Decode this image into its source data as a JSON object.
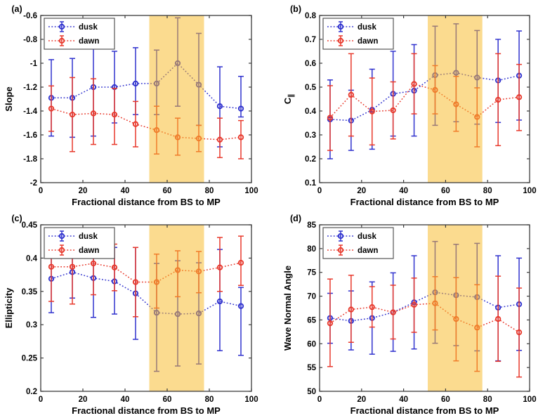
{
  "colors": {
    "dusk": "#3032CE",
    "dawn": "#E8392C",
    "band_overlay": "rgba(247,186,40,0.52)",
    "axis": "#3b3b3b",
    "text": "#000000",
    "legend_border": "#555555"
  },
  "legend": {
    "items": [
      "dusk",
      "dawn"
    ]
  },
  "xlabel_shared": "Fractional distance from BS to MP",
  "chart_data": [
    {
      "id": "a",
      "panel_label": "(a)",
      "type": "line",
      "subtype": "errorbar",
      "xlabel": "Fractional distance from BS to MP",
      "ylabel": "Slope",
      "xlim": [
        0,
        100
      ],
      "ylim": [
        -2,
        -0.6
      ],
      "xticks": [
        0,
        20,
        40,
        60,
        80,
        100
      ],
      "xtick_labels": [
        "0",
        "20",
        "40",
        "60",
        "80",
        "100"
      ],
      "yticks": [
        -2,
        -1.8,
        -1.6,
        -1.4,
        -1.2,
        -1,
        -0.8,
        -0.6
      ],
      "ytick_labels": [
        "-2",
        "-1.8",
        "-1.6",
        "-1.4",
        "-1.2",
        "-1",
        "-0.8",
        "-0.6"
      ],
      "band_x": [
        51.5,
        77.5
      ],
      "legend": [
        "dusk",
        "dawn"
      ],
      "x": [
        5,
        15,
        25,
        35,
        45,
        55,
        65,
        75,
        85,
        95
      ],
      "series": [
        {
          "name": "dusk",
          "y": [
            -1.29,
            -1.29,
            -1.2,
            -1.2,
            -1.17,
            -1.17,
            -1.0,
            -1.18,
            -1.36,
            -1.38
          ],
          "err_lo": [
            -1.61,
            -1.62,
            -1.61,
            -1.5,
            -1.43,
            -1.43,
            -1.36,
            -1.52,
            -1.7,
            -1.45
          ],
          "err_hi": [
            -0.97,
            -0.96,
            -0.79,
            -0.9,
            -0.87,
            -0.89,
            -0.62,
            -0.75,
            -1.03,
            -1.11
          ]
        },
        {
          "name": "dawn",
          "y": [
            -1.38,
            -1.43,
            -1.42,
            -1.43,
            -1.51,
            -1.56,
            -1.62,
            -1.63,
            -1.64,
            -1.62
          ],
          "err_lo": [
            -1.57,
            -1.74,
            -1.68,
            -1.68,
            -1.7,
            -1.76,
            -1.77,
            -1.74,
            -1.79,
            -1.8
          ],
          "err_hi": [
            -1.19,
            -1.12,
            -1.13,
            -1.21,
            -1.32,
            -1.36,
            -1.46,
            -1.52,
            -1.46,
            -1.48
          ]
        }
      ]
    },
    {
      "id": "b",
      "panel_label": "(b)",
      "type": "line",
      "subtype": "errorbar",
      "xlabel": "Fractional distance from BS to MP",
      "ylabel": "C",
      "ylabel_sub": "∥",
      "xlim": [
        0,
        100
      ],
      "ylim": [
        0.1,
        0.8
      ],
      "xticks": [
        0,
        20,
        40,
        60,
        80,
        100
      ],
      "xtick_labels": [
        "0",
        "20",
        "40",
        "60",
        "80",
        "100"
      ],
      "yticks": [
        0.1,
        0.2,
        0.3,
        0.4,
        0.5,
        0.6,
        0.7,
        0.8
      ],
      "ytick_labels": [
        "0.1",
        "0.2",
        "0.3",
        "0.4",
        "0.5",
        "0.6",
        "0.7",
        "0.8"
      ],
      "band_x": [
        51.5,
        77.5
      ],
      "legend": [
        "dusk",
        "dawn"
      ],
      "x": [
        5,
        15,
        25,
        35,
        45,
        55,
        65,
        75,
        85,
        95
      ],
      "series": [
        {
          "name": "dusk",
          "y": [
            0.365,
            0.36,
            0.405,
            0.472,
            0.485,
            0.55,
            0.56,
            0.54,
            0.528,
            0.548
          ],
          "err_lo": [
            0.2,
            0.235,
            0.24,
            0.295,
            0.295,
            0.34,
            0.355,
            0.345,
            0.352,
            0.362
          ],
          "err_hi": [
            0.53,
            0.487,
            0.575,
            0.65,
            0.678,
            0.755,
            0.765,
            0.737,
            0.7,
            0.735
          ]
        },
        {
          "name": "dawn",
          "y": [
            0.372,
            0.468,
            0.398,
            0.403,
            0.513,
            0.488,
            0.428,
            0.375,
            0.447,
            0.458
          ],
          "err_lo": [
            0.235,
            0.295,
            0.258,
            0.283,
            0.388,
            0.388,
            0.315,
            0.25,
            0.255,
            0.318
          ],
          "err_hi": [
            0.506,
            0.64,
            0.538,
            0.522,
            0.64,
            0.59,
            0.545,
            0.497,
            0.64,
            0.595
          ]
        }
      ]
    },
    {
      "id": "c",
      "panel_label": "(c)",
      "type": "line",
      "subtype": "errorbar",
      "xlabel": "Fractional distance from BS to MP",
      "ylabel": "Ellipticity",
      "xlim": [
        0,
        100
      ],
      "ylim": [
        0.2,
        0.45
      ],
      "xticks": [
        0,
        20,
        40,
        60,
        80,
        100
      ],
      "xtick_labels": [
        "0",
        "20",
        "40",
        "60",
        "80",
        "100"
      ],
      "yticks": [
        0.2,
        0.25,
        0.3,
        0.35,
        0.4,
        0.45
      ],
      "ytick_labels": [
        "0.2",
        "0.25",
        "0.3",
        "0.35",
        "0.4",
        "0.45"
      ],
      "band_x": [
        51.5,
        77.5
      ],
      "legend": [
        "dusk",
        "dawn"
      ],
      "x": [
        5,
        15,
        25,
        35,
        45,
        55,
        65,
        75,
        85,
        95
      ],
      "series": [
        {
          "name": "dusk",
          "y": [
            0.369,
            0.379,
            0.37,
            0.365,
            0.347,
            0.318,
            0.316,
            0.317,
            0.335,
            0.328
          ],
          "err_lo": [
            0.318,
            0.34,
            0.311,
            0.316,
            0.278,
            0.23,
            0.238,
            0.241,
            0.261,
            0.254
          ],
          "err_hi": [
            0.42,
            0.42,
            0.43,
            0.416,
            0.416,
            0.392,
            0.396,
            0.393,
            0.413,
            0.356
          ]
        },
        {
          "name": "dawn",
          "y": [
            0.387,
            0.387,
            0.392,
            0.386,
            0.364,
            0.364,
            0.382,
            0.38,
            0.386,
            0.393
          ],
          "err_lo": [
            0.335,
            0.331,
            0.345,
            0.351,
            0.312,
            0.325,
            0.342,
            0.348,
            0.35,
            0.359
          ],
          "err_hi": [
            0.44,
            0.445,
            0.439,
            0.421,
            0.416,
            0.406,
            0.411,
            0.41,
            0.431,
            0.433
          ]
        }
      ]
    },
    {
      "id": "d",
      "panel_label": "(d)",
      "type": "line",
      "subtype": "errorbar",
      "xlabel": "Fractional distance from BS to MP",
      "ylabel": "Wave Normal Angle",
      "xlim": [
        0,
        100
      ],
      "ylim": [
        50,
        85
      ],
      "xticks": [
        0,
        20,
        40,
        60,
        80,
        100
      ],
      "xtick_labels": [
        "0",
        "20",
        "40",
        "60",
        "80",
        "100"
      ],
      "yticks": [
        50,
        55,
        60,
        65,
        70,
        75,
        80,
        85
      ],
      "ytick_labels": [
        "50",
        "55",
        "60",
        "65",
        "70",
        "75",
        "80",
        "85"
      ],
      "band_x": [
        51.5,
        77.5
      ],
      "legend": [
        "dusk",
        "dawn"
      ],
      "x": [
        5,
        15,
        25,
        35,
        45,
        55,
        65,
        75,
        85,
        95
      ],
      "series": [
        {
          "name": "dusk",
          "y": [
            65.4,
            64.8,
            65.4,
            66.6,
            68.7,
            70.8,
            70.2,
            69.8,
            67.6,
            68.3
          ],
          "err_lo": [
            60.1,
            58.7,
            57.8,
            58.4,
            58.9,
            60.1,
            59.6,
            58.5,
            56.4,
            58.6
          ],
          "err_hi": [
            70.6,
            71.1,
            73.0,
            74.9,
            78.5,
            81.5,
            80.9,
            81.1,
            78.5,
            78.0
          ]
        },
        {
          "name": "dawn",
          "y": [
            64.3,
            67.2,
            67.7,
            66.6,
            68.2,
            68.5,
            65.2,
            63.4,
            65.2,
            62.4
          ],
          "err_lo": [
            55.2,
            60.3,
            63.5,
            61.0,
            62.4,
            62.9,
            56.4,
            54.2,
            56.3,
            53.0
          ],
          "err_hi": [
            73.6,
            74.4,
            72.0,
            72.3,
            73.8,
            74.1,
            73.9,
            72.4,
            74.2,
            71.7
          ]
        }
      ]
    }
  ]
}
